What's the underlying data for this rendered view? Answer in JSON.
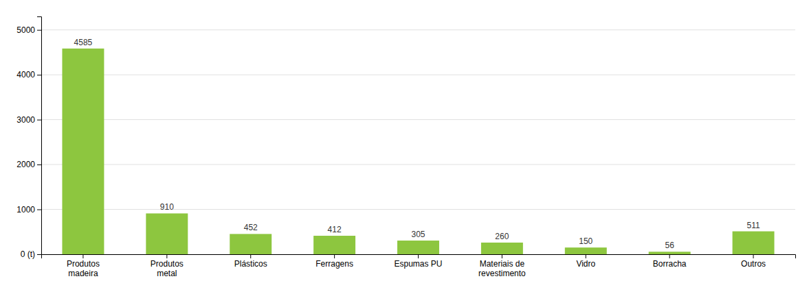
{
  "chart_data": {
    "type": "bar",
    "categories": [
      "Produtos\nmadeira",
      "Produtos\nmetal",
      "Plásticos",
      "Ferragens",
      "Espumas PU",
      "Materiais de\nrevestimento",
      "Vidro",
      "Borracha",
      "Outros"
    ],
    "values": [
      4585,
      910,
      452,
      412,
      305,
      260,
      150,
      56,
      511
    ],
    "color": "#8dc63f",
    "ylim": [
      0,
      5300
    ],
    "yticks": [
      {
        "value": 0,
        "label": "0 (t)"
      },
      1000,
      2000,
      3000,
      4000,
      5000
    ],
    "grid": true,
    "data_labels": true
  }
}
